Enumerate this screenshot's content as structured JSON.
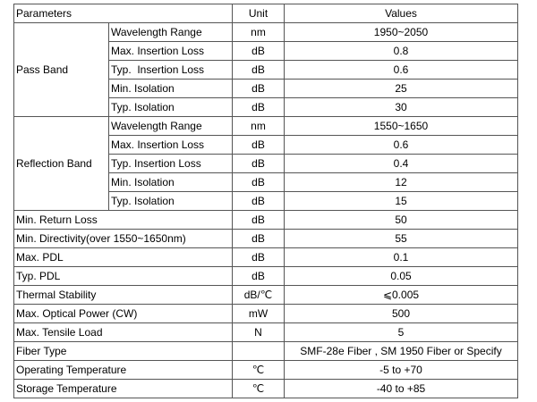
{
  "table": {
    "header": [
      "Parameters",
      "Unit",
      "Values"
    ],
    "groups": [
      {
        "label": "Pass Band",
        "rows": [
          [
            "Wavelength Range",
            "nm",
            "1950~2050"
          ],
          [
            "Max. Insertion Loss",
            "dB",
            "0.8"
          ],
          [
            "Typ.  Insertion Loss",
            "dB",
            "0.6"
          ],
          [
            "Min. Isolation",
            "dB",
            "25"
          ],
          [
            "Typ. Isolation",
            "dB",
            "30"
          ]
        ]
      },
      {
        "label": "Reflection Band",
        "rows": [
          [
            "Wavelength Range",
            "nm",
            "1550~1650"
          ],
          [
            "Max. Insertion Loss",
            "dB",
            "0.6"
          ],
          [
            "Typ. Insertion Loss",
            "dB",
            "0.4"
          ],
          [
            "Min. Isolation",
            "dB",
            "12"
          ],
          [
            "Typ. Isolation",
            "dB",
            "15"
          ]
        ]
      }
    ],
    "rows": [
      [
        "Min. Return Loss",
        "dB",
        "50"
      ],
      [
        "Min. Directivity(over 1550~1650nm)",
        "dB",
        "55"
      ],
      [
        "Max. PDL",
        "dB",
        "0.1"
      ],
      [
        "Typ. PDL",
        "dB",
        "0.05"
      ],
      [
        "Thermal Stability",
        "dB/℃",
        "⩽0.005"
      ],
      [
        "Max. Optical Power (CW)",
        "mW",
        "500"
      ],
      [
        "Max. Tensile Load",
        "N",
        "5"
      ],
      [
        "Fiber Type",
        "",
        "SMF-28e Fiber , SM 1950 Fiber or Specify"
      ],
      [
        "Operating Temperature",
        "℃",
        "-5 to +70"
      ],
      [
        "Storage Temperature",
        "℃",
        "-40 to +85"
      ]
    ]
  }
}
